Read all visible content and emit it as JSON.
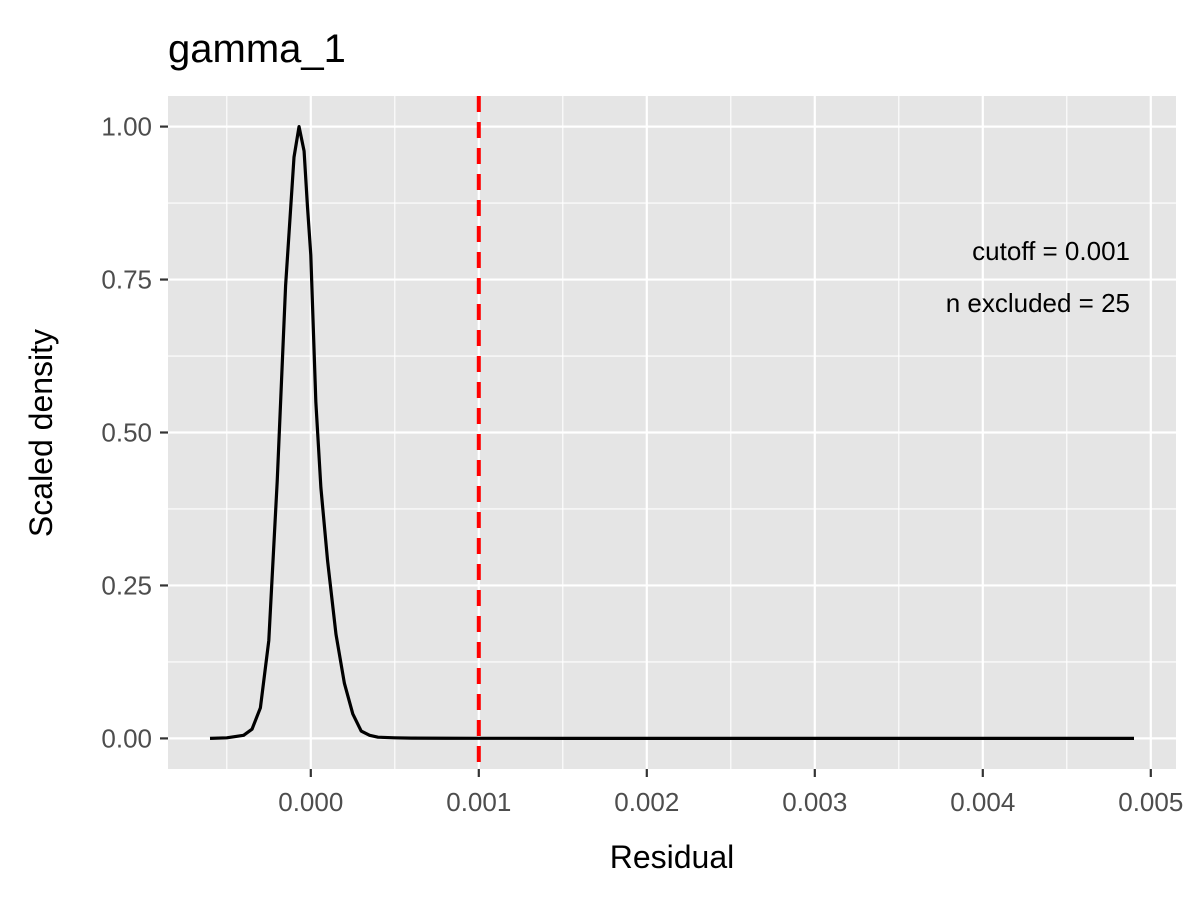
{
  "chart_data": {
    "type": "line",
    "title": "gamma_1",
    "xlabel": "Residual",
    "ylabel": "Scaled density",
    "xlim": [
      -0.00085,
      0.00515
    ],
    "ylim": [
      -0.05,
      1.05
    ],
    "x_ticks": [
      0.0,
      0.001,
      0.002,
      0.003,
      0.004,
      0.005
    ],
    "x_tick_labels": [
      "0.000",
      "0.001",
      "0.002",
      "0.003",
      "0.004",
      "0.005"
    ],
    "y_ticks": [
      0.0,
      0.25,
      0.5,
      0.75,
      1.0
    ],
    "y_tick_labels": [
      "0.00",
      "0.25",
      "0.50",
      "0.75",
      "1.00"
    ],
    "grid": true,
    "cutoff": 0.001,
    "annotations": [
      "cutoff = 0.001",
      "n excluded = 25"
    ],
    "colors": {
      "panel": "#e5e5e5",
      "line": "#000000",
      "cutoff_line": "#ff0000"
    },
    "series": [
      {
        "x": [
          -0.0006,
          -0.0005,
          -0.0004,
          -0.00035,
          -0.0003,
          -0.00025,
          -0.0002,
          -0.00015,
          -0.0001,
          -7e-05,
          -4e-05,
          -2e-05,
          0.0,
          3e-05,
          6e-05,
          0.0001,
          0.00015,
          0.0002,
          0.00025,
          0.0003,
          0.00035,
          0.0004,
          0.0005,
          0.0006,
          0.0008,
          0.001,
          0.0015,
          0.002,
          0.003,
          0.004,
          0.0049
        ],
        "y": [
          0.0,
          0.001,
          0.005,
          0.015,
          0.05,
          0.16,
          0.42,
          0.74,
          0.95,
          1.0,
          0.96,
          0.87,
          0.79,
          0.55,
          0.41,
          0.29,
          0.17,
          0.09,
          0.04,
          0.012,
          0.005,
          0.002,
          0.001,
          0.0005,
          0.0003,
          0.0002,
          0.0001,
          0.0001,
          0.0,
          0.0,
          0.0
        ]
      }
    ]
  }
}
